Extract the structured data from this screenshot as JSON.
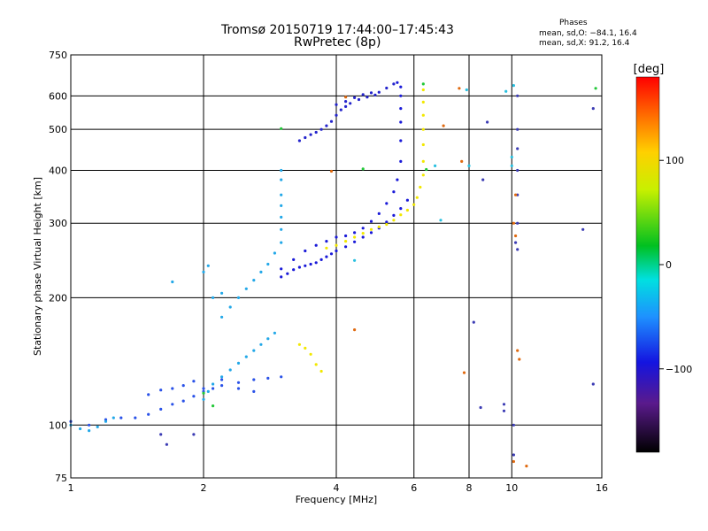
{
  "title": {
    "line1": "Tromsø 20150719 17:44:00–17:45:43",
    "line2": "RwPretec (8p)"
  },
  "phases": {
    "title": "Phases",
    "o_line": "mean, sd,O: −84.1, 16.4",
    "x_line": "mean, sd,X:  91.2, 16.4"
  },
  "chart_data": {
    "type": "scatter",
    "xlabel": "Frequency [MHz]",
    "ylabel": "Stationary phase Virtual Height [km]",
    "x_scale": "log",
    "y_scale": "log",
    "xlim": [
      1,
      16
    ],
    "ylim": [
      75,
      750
    ],
    "x_ticks": [
      1,
      2,
      4,
      6,
      8,
      10,
      16
    ],
    "x_tick_labels": [
      "1",
      "2",
      "4",
      "6",
      "8",
      "10",
      "16"
    ],
    "y_ticks": [
      75,
      100,
      200,
      300,
      400,
      500,
      600,
      750
    ],
    "y_tick_labels": [
      "75",
      "100",
      "200",
      "300",
      "400",
      "500",
      "600",
      "750"
    ],
    "grid": true,
    "colorbar": {
      "label": "[deg]",
      "range": [
        -180,
        180
      ],
      "ticks": [
        100,
        0,
        -100
      ],
      "tick_labels": [
        "100",
        "0",
        "−100"
      ]
    },
    "series": [
      {
        "color": "#2a52e8",
        "points": [
          [
            1.0,
            102
          ],
          [
            1.1,
            100
          ],
          [
            1.2,
            103
          ],
          [
            1.3,
            104
          ],
          [
            1.4,
            104
          ],
          [
            1.5,
            106
          ],
          [
            1.6,
            109
          ],
          [
            1.7,
            112
          ],
          [
            1.8,
            114
          ],
          [
            1.9,
            117
          ],
          [
            2.0,
            120
          ],
          [
            2.1,
            122
          ],
          [
            2.2,
            124
          ],
          [
            2.4,
            126
          ],
          [
            2.6,
            128
          ],
          [
            2.8,
            129
          ],
          [
            3.0,
            130
          ],
          [
            1.5,
            118
          ],
          [
            1.6,
            121
          ],
          [
            1.7,
            122
          ],
          [
            1.8,
            124
          ],
          [
            1.9,
            127
          ],
          [
            2.0,
            122
          ],
          [
            2.2,
            128
          ],
          [
            2.4,
            122
          ],
          [
            2.6,
            120
          ]
        ]
      },
      {
        "color": "#1a1ad8",
        "points": [
          [
            3.0,
            224
          ],
          [
            3.1,
            228
          ],
          [
            3.2,
            233
          ],
          [
            3.3,
            236
          ],
          [
            3.4,
            238
          ],
          [
            3.5,
            240
          ],
          [
            3.6,
            242
          ],
          [
            3.7,
            246
          ],
          [
            3.8,
            250
          ],
          [
            3.9,
            254
          ],
          [
            4.0,
            258
          ],
          [
            4.2,
            264
          ],
          [
            4.4,
            271
          ],
          [
            4.6,
            278
          ],
          [
            4.8,
            285
          ],
          [
            5.0,
            292
          ],
          [
            5.2,
            302
          ],
          [
            5.4,
            313
          ],
          [
            5.6,
            325
          ],
          [
            5.8,
            340
          ],
          [
            3.0,
            234
          ],
          [
            3.2,
            246
          ],
          [
            3.4,
            258
          ],
          [
            3.6,
            266
          ],
          [
            3.8,
            272
          ],
          [
            4.0,
            278
          ],
          [
            4.2,
            280
          ],
          [
            4.4,
            285
          ],
          [
            4.6,
            292
          ],
          [
            4.8,
            303
          ],
          [
            5.0,
            316
          ],
          [
            5.2,
            334
          ],
          [
            5.4,
            356
          ],
          [
            5.5,
            380
          ],
          [
            5.6,
            420
          ],
          [
            5.6,
            470
          ],
          [
            5.6,
            520
          ],
          [
            5.6,
            560
          ],
          [
            5.6,
            600
          ],
          [
            5.6,
            630
          ],
          [
            5.5,
            645
          ]
        ]
      },
      {
        "color": "#2424cc",
        "points": [
          [
            3.3,
            470
          ],
          [
            3.4,
            478
          ],
          [
            3.5,
            486
          ],
          [
            3.6,
            492
          ],
          [
            3.7,
            500
          ],
          [
            3.8,
            510
          ],
          [
            3.9,
            522
          ],
          [
            4.0,
            540
          ],
          [
            4.1,
            556
          ],
          [
            4.2,
            566
          ],
          [
            4.3,
            576
          ],
          [
            4.5,
            588
          ],
          [
            4.7,
            596
          ],
          [
            4.9,
            603
          ],
          [
            4.0,
            572
          ],
          [
            4.2,
            582
          ],
          [
            4.4,
            594
          ],
          [
            4.6,
            604
          ],
          [
            4.8,
            610
          ],
          [
            5.0,
            612
          ],
          [
            5.2,
            626
          ],
          [
            5.4,
            640
          ]
        ]
      },
      {
        "color": "#f2e800",
        "points": [
          [
            3.8,
            262
          ],
          [
            4.0,
            266
          ],
          [
            4.2,
            272
          ],
          [
            4.4,
            278
          ],
          [
            4.6,
            284
          ],
          [
            4.8,
            290
          ],
          [
            5.0,
            294
          ],
          [
            5.2,
            298
          ],
          [
            5.4,
            305
          ],
          [
            5.6,
            314
          ],
          [
            5.8,
            322
          ],
          [
            6.0,
            332
          ],
          [
            6.1,
            345
          ],
          [
            6.2,
            365
          ],
          [
            6.3,
            390
          ],
          [
            6.3,
            420
          ],
          [
            6.3,
            460
          ],
          [
            6.3,
            500
          ],
          [
            6.3,
            540
          ],
          [
            6.3,
            580
          ],
          [
            6.3,
            620
          ],
          [
            3.3,
            155
          ],
          [
            3.4,
            152
          ],
          [
            3.5,
            147
          ],
          [
            3.6,
            139
          ],
          [
            3.7,
            134
          ]
        ]
      },
      {
        "color": "#23a8e8",
        "points": [
          [
            1.0,
            100
          ],
          [
            1.05,
            98
          ],
          [
            1.1,
            97
          ],
          [
            1.15,
            99
          ],
          [
            1.2,
            102
          ],
          [
            1.25,
            104
          ],
          [
            2.0,
            115
          ],
          [
            2.05,
            120
          ],
          [
            2.1,
            125
          ],
          [
            2.2,
            130
          ],
          [
            2.3,
            135
          ],
          [
            2.4,
            140
          ],
          [
            2.5,
            145
          ],
          [
            2.6,
            150
          ],
          [
            2.7,
            155
          ],
          [
            2.8,
            160
          ],
          [
            2.9,
            165
          ],
          [
            2.2,
            180
          ],
          [
            2.3,
            190
          ],
          [
            2.4,
            200
          ],
          [
            2.5,
            210
          ],
          [
            2.6,
            220
          ],
          [
            2.7,
            230
          ],
          [
            2.8,
            240
          ],
          [
            2.9,
            255
          ],
          [
            3.0,
            270
          ],
          [
            3.0,
            290
          ],
          [
            3.0,
            310
          ],
          [
            3.0,
            330
          ],
          [
            3.0,
            350
          ],
          [
            3.0,
            380
          ],
          [
            3.0,
            400
          ],
          [
            2.0,
            230
          ],
          [
            2.05,
            238
          ],
          [
            2.1,
            200
          ],
          [
            2.2,
            205
          ],
          [
            1.7,
            218
          ]
        ]
      },
      {
        "color": "#3c3cb4",
        "points": [
          [
            9.6,
            112
          ],
          [
            9.6,
            108
          ],
          [
            10.1,
            100
          ],
          [
            10.1,
            85
          ],
          [
            10.2,
            270
          ],
          [
            10.3,
            260
          ],
          [
            10.3,
            300
          ],
          [
            10.3,
            350
          ],
          [
            10.3,
            400
          ],
          [
            10.3,
            450
          ],
          [
            10.3,
            500
          ],
          [
            10.3,
            600
          ],
          [
            8.8,
            520
          ],
          [
            8.6,
            380
          ],
          [
            8.2,
            175
          ],
          [
            14.5,
            290
          ],
          [
            15.3,
            560
          ],
          [
            15.3,
            125
          ],
          [
            8.5,
            110
          ],
          [
            1.6,
            95
          ],
          [
            1.65,
            90
          ],
          [
            1.9,
            95
          ]
        ]
      },
      {
        "color": "#e06a10",
        "points": [
          [
            4.2,
            596
          ],
          [
            7.6,
            625
          ],
          [
            7.0,
            510
          ],
          [
            7.7,
            420
          ],
          [
            10.2,
            350
          ],
          [
            10.1,
            300
          ],
          [
            10.2,
            280
          ],
          [
            10.3,
            150
          ],
          [
            10.4,
            143
          ],
          [
            7.8,
            133
          ],
          [
            10.8,
            80
          ],
          [
            3.9,
            398
          ],
          [
            4.4,
            168
          ],
          [
            10.1,
            82
          ]
        ]
      },
      {
        "color": "#22c838",
        "points": [
          [
            3.0,
            502
          ],
          [
            15.5,
            625
          ],
          [
            2.0,
            119
          ],
          [
            2.1,
            111
          ],
          [
            4.6,
            403
          ],
          [
            6.4,
            402
          ],
          [
            6.3,
            640
          ]
        ]
      },
      {
        "color": "#28c0e0",
        "points": [
          [
            7.9,
            620
          ],
          [
            9.7,
            615
          ],
          [
            10.1,
            635
          ],
          [
            10.0,
            410
          ],
          [
            10.0,
            430
          ],
          [
            6.9,
            305
          ],
          [
            4.4,
            245
          ],
          [
            6.7,
            410
          ],
          [
            8.0,
            410
          ]
        ]
      }
    ]
  }
}
